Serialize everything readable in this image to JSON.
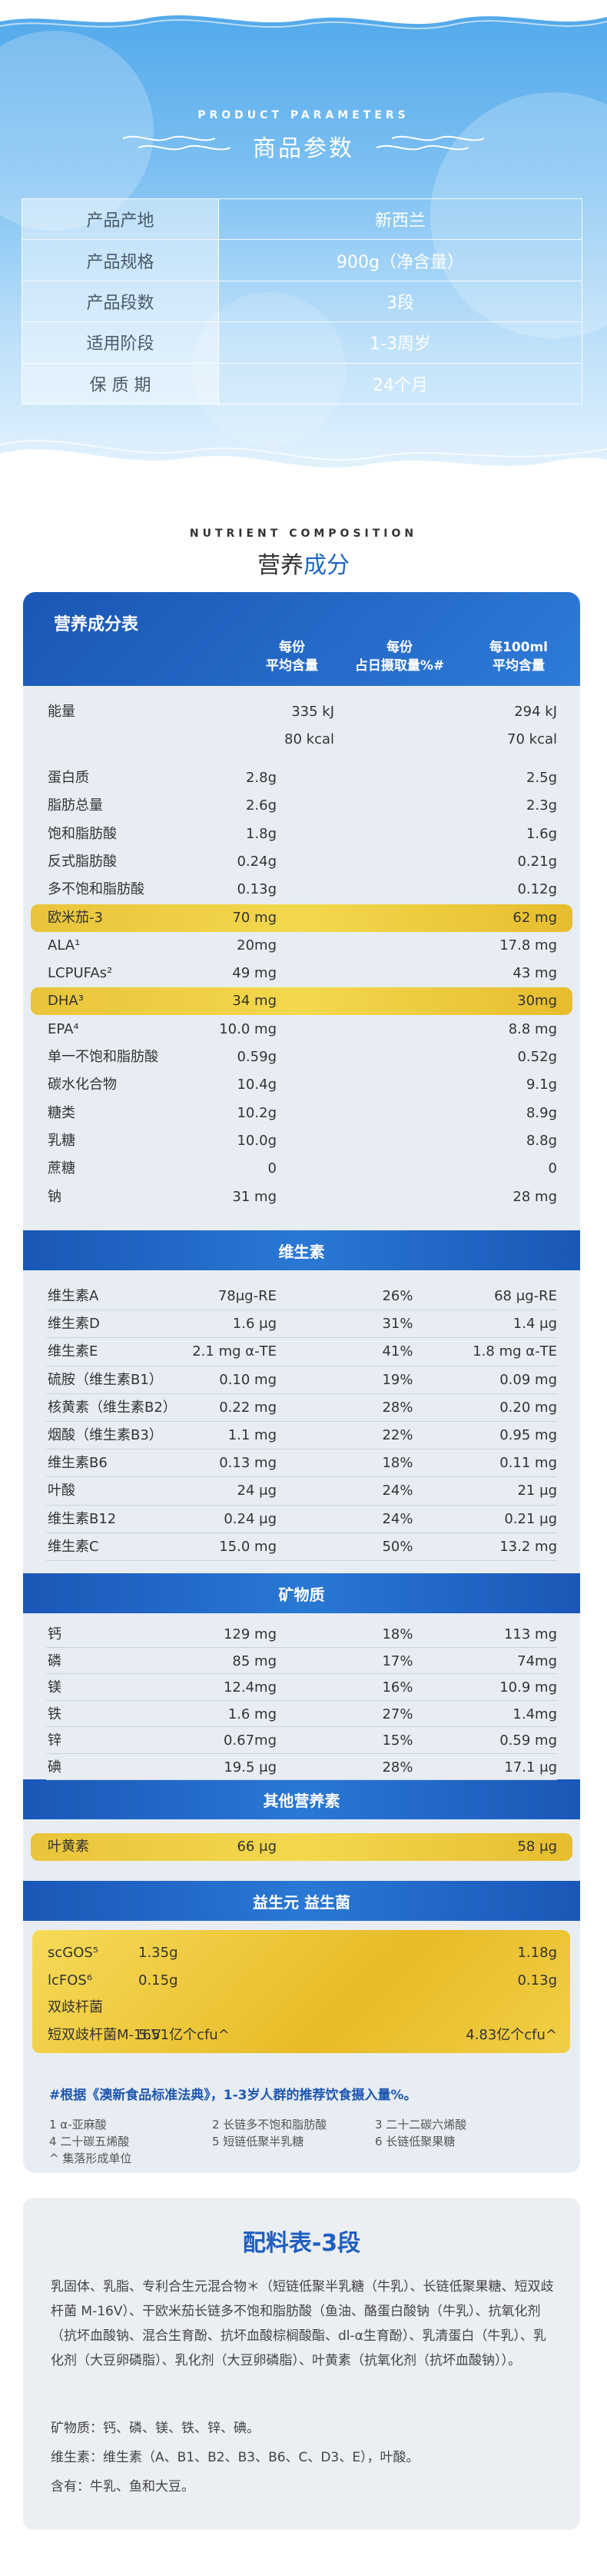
{
  "params_section": {
    "title_en": "PRODUCT PARAMETERS",
    "title_cn": "商品参数",
    "rows": [
      {
        "label": "产品产地",
        "value": "新西兰"
      },
      {
        "label": "产品规格",
        "value": "900g（净含量）"
      },
      {
        "label": "产品段数",
        "value": "3段"
      },
      {
        "label": "适用阶段",
        "value": "1-3周岁"
      },
      {
        "label": "保 质 期",
        "value": "24个月"
      }
    ]
  },
  "nutrient_section": {
    "title_en": "NUTRIENT COMPOSITION",
    "title_cn_a": "营养",
    "title_cn_b": "成分"
  },
  "table": {
    "title": "营养成分表",
    "col1_l1": "每份",
    "col1_l2": "平均含量",
    "col2_l1": "每份",
    "col2_l2": "占日摄取量%#",
    "col3_l1": "每100ml",
    "col3_l2": "平均含量",
    "energy": {
      "name": "能量",
      "a1": "335 kJ",
      "a2": "80 kcal",
      "c1": "294 kJ",
      "c2": "70 kcal"
    },
    "main_rows": [
      {
        "name": "蛋白质",
        "a": "2.8g",
        "b": "",
        "c": "2.5g"
      },
      {
        "name": "脂肪总量",
        "a": "2.6g",
        "b": "",
        "c": "2.3g"
      },
      {
        "name": "饱和脂肪酸",
        "a": "1.8g",
        "b": "",
        "c": "1.6g"
      },
      {
        "name": "反式脂肪酸",
        "a": "0.24g",
        "b": "",
        "c": "0.21g"
      },
      {
        "name": "多不饱和脂肪酸",
        "a": "0.13g",
        "b": "",
        "c": "0.12g"
      },
      {
        "name": "欧米茄-3",
        "a": "70 mg",
        "b": "",
        "c": "62 mg",
        "hl": true
      },
      {
        "name": "ALA¹",
        "a": "20mg",
        "b": "",
        "c": "17.8 mg"
      },
      {
        "name": "LCPUFAs²",
        "a": "49 mg",
        "b": "",
        "c": "43 mg"
      },
      {
        "name": "DHA³",
        "a": "34 mg",
        "b": "",
        "c": "30mg",
        "hl": true
      },
      {
        "name": "EPA⁴",
        "a": "10.0 mg",
        "b": "",
        "c": "8.8 mg"
      },
      {
        "name": "单一不饱和脂肪酸",
        "a": "0.59g",
        "b": "",
        "c": "0.52g"
      },
      {
        "name": "碳水化合物",
        "a": "10.4g",
        "b": "",
        "c": "9.1g"
      },
      {
        "name": "糖类",
        "a": "10.2g",
        "b": "",
        "c": "8.9g"
      },
      {
        "name": "乳糖",
        "a": "10.0g",
        "b": "",
        "c": "8.8g"
      },
      {
        "name": "蔗糖",
        "a": "0",
        "b": "",
        "c": "0"
      },
      {
        "name": "钠",
        "a": "31 mg",
        "b": "",
        "c": "28 mg"
      }
    ],
    "vitamin_title": "维生素",
    "vitamins": [
      {
        "name": "维生素A",
        "a": "78μg-RE",
        "b": "26%",
        "c": "68 μg-RE"
      },
      {
        "name": "维生素D",
        "a": "1.6 μg",
        "b": "31%",
        "c": "1.4 μg"
      },
      {
        "name": "维生素E",
        "a": "2.1 mg α-TE",
        "b": "41%",
        "c": "1.8 mg α-TE"
      },
      {
        "name": "硫胺（维生素B1）",
        "a": "0.10 mg",
        "b": "19%",
        "c": "0.09 mg"
      },
      {
        "name": "核黄素（维生素B2）",
        "a": "0.22 mg",
        "b": "28%",
        "c": "0.20 mg"
      },
      {
        "name": "烟酸（维生素B3）",
        "a": "1.1 mg",
        "b": "22%",
        "c": "0.95 mg"
      },
      {
        "name": "维生素B6",
        "a": "0.13 mg",
        "b": "18%",
        "c": "0.11 mg"
      },
      {
        "name": "叶酸",
        "a": "24 μg",
        "b": "24%",
        "c": "21 μg"
      },
      {
        "name": "维生素B12",
        "a": "0.24 μg",
        "b": "24%",
        "c": "0.21 μg"
      },
      {
        "name": "维生素C",
        "a": "15.0 mg",
        "b": "50%",
        "c": "13.2 mg"
      }
    ],
    "mineral_title": "矿物质",
    "minerals": [
      {
        "name": "钙",
        "a": "129 mg",
        "b": "18%",
        "c": "113 mg"
      },
      {
        "name": "磷",
        "a": "85 mg",
        "b": "17%",
        "c": "74mg"
      },
      {
        "name": "镁",
        "a": "12.4mg",
        "b": "16%",
        "c": "10.9 mg"
      },
      {
        "name": "铁",
        "a": "1.6 mg",
        "b": "27%",
        "c": "1.4mg"
      },
      {
        "name": "锌",
        "a": "0.67mg",
        "b": "15%",
        "c": "0.59 mg"
      },
      {
        "name": "碘",
        "a": "19.5 μg",
        "b": "28%",
        "c": "17.1 μg"
      }
    ],
    "other_title": "其他营养素",
    "other": {
      "name": "叶黄素",
      "a": "66 μg",
      "c": "58 μg"
    },
    "probiotic_title": "益生元 益生菌",
    "probiotics": [
      {
        "name": "scGOS⁵",
        "a": "1.35g",
        "c": "1.18g"
      },
      {
        "name": "lcFOS⁶",
        "a": "0.15g",
        "c": "0.13g"
      },
      {
        "name": "双歧杆菌",
        "a": "",
        "c": ""
      },
      {
        "name": "短双歧杆菌M-16V",
        "a": "5.51亿个cfu^",
        "c": "4.83亿个cfu^"
      }
    ],
    "note_main": "#根据《澳新食品标准法典》，1-3岁人群的推荐饮食摄入量%。",
    "footnotes": [
      [
        "1 α-亚麻酸",
        "2 长链多不饱和脂肪酸",
        "3 二十二碳六烯酸"
      ],
      [
        "4 二十碳五烯酸",
        "5 短链低聚半乳糖",
        "6 长链低聚果糖"
      ],
      [
        "^ 集落形成单位",
        "",
        ""
      ]
    ]
  },
  "ingredients": {
    "title": "配料表-3段",
    "para1": "乳固体、乳脂、专利合生元混合物＊（短链低聚半乳糖（牛乳）、长链低聚果糖、短双歧杆菌 M-16V）、干欧米茄长链多不饱和脂肪酸（鱼油、酪蛋白酸钠（牛乳）、抗氧化剂（抗坏血酸钠、混合生育酚、抗坏血酸棕榈酸酯、dl-α生育酚）、乳清蛋白（牛乳）、乳化剂（大豆卵磷脂）、乳化剂（大豆卵磷脂）、叶黄素（抗氧化剂（抗坏血酸钠））。",
    "minerals_line": "矿物质：钙、磷、镁、铁、锌、碘。",
    "vitamins_line": "维生素：维生素（A、B1、B2、B3、B6、C、D3、E），叶酸。",
    "contains_line": "含有：牛乳、鱼和大豆。"
  }
}
